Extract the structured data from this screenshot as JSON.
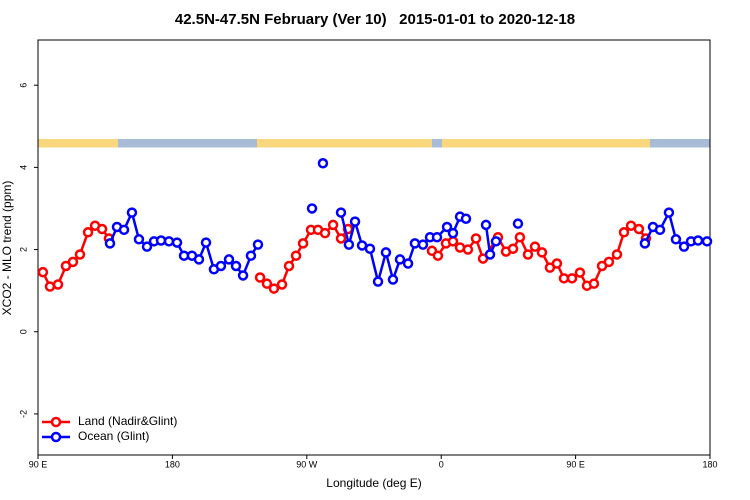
{
  "chart_data": {
    "type": "line",
    "title": "42.5N-47.5N February (Ver 10)   2015-01-01 to 2020-12-18",
    "xlabel": "Longitude (deg E)",
    "ylabel": "XCO2 - MLO trend (ppm)",
    "xlim": [
      90,
      540
    ],
    "ylim": [
      -3,
      7.1
    ],
    "xticks": [
      {
        "value": 90,
        "label": "90 E"
      },
      180,
      {
        "value": 270,
        "label": "90 W"
      },
      {
        "value": 360,
        "label": "0"
      },
      {
        "value": 450,
        "label": "90 E"
      },
      {
        "value": 540,
        "label": "180"
      }
    ],
    "yticks": [
      -2,
      0,
      2,
      4,
      6
    ],
    "grid": false,
    "legend": "bottom-left",
    "series": [
      {
        "name": "Land (Nadir&Glint)",
        "color": "#ff0000",
        "x": [
          93.3,
          98.0,
          103.4,
          108.7,
          113.4,
          118.1,
          123.5,
          128.2,
          132.9,
          137.5,
          null,
          238.7,
          243.3,
          248.0,
          253.4,
          258.1,
          262.8,
          267.5,
          272.8,
          277.5,
          282.2,
          287.6,
          292.9,
          297.6,
          null,
          353.8,
          357.8,
          363.2,
          367.9,
          372.6,
          377.9,
          383.3,
          388.0,
          398.0,
          403.4,
          408.1,
          412.7,
          418.1,
          422.8,
          427.5,
          432.8,
          437.5,
          442.2,
          447.6,
          452.9,
          457.6,
          462.3,
          467.7,
          472.3,
          477.7,
          482.4,
          487.1,
          492.4,
          497.1
        ],
        "values": [
          1.45,
          1.1,
          1.15,
          1.6,
          1.7,
          1.88,
          2.42,
          2.58,
          2.5,
          2.27,
          null,
          1.32,
          1.17,
          1.05,
          1.15,
          1.6,
          1.85,
          2.15,
          2.48,
          2.48,
          2.4,
          2.6,
          2.27,
          2.5,
          null,
          1.97,
          1.85,
          2.15,
          2.2,
          2.05,
          2.0,
          2.27,
          1.78,
          2.3,
          1.95,
          2.02,
          2.3,
          1.88,
          2.07,
          1.93,
          1.56,
          1.66,
          1.3,
          1.3,
          1.44,
          1.12,
          1.17,
          1.6,
          1.7,
          1.88,
          2.42,
          2.58,
          2.5,
          2.27
        ]
      },
      {
        "name": "Ocean (Glint)",
        "color": "#0000ff",
        "x": [
          138.2,
          142.9,
          147.6,
          152.9,
          157.6,
          163.0,
          167.7,
          172.4,
          177.7,
          183.1,
          187.8,
          193.1,
          197.8,
          202.5,
          207.8,
          212.5,
          217.9,
          222.6,
          227.3,
          232.6,
          237.3,
          null,
          273.5,
          null,
          280.8,
          null,
          292.9,
          298.2,
          302.3,
          307.0,
          312.3,
          317.7,
          323.0,
          327.7,
          332.4,
          337.8,
          342.4,
          347.8,
          352.5,
          357.2,
          363.9,
          367.9,
          372.6,
          376.6,
          null,
          390.0,
          392.7,
          396.7,
          null,
          411.4,
          null,
          496.4,
          501.8,
          506.5,
          512.5,
          517.2,
          522.6,
          527.3,
          532.0,
          538.0
        ],
        "values": [
          2.15,
          2.55,
          2.48,
          2.9,
          2.25,
          2.07,
          2.2,
          2.22,
          2.2,
          2.17,
          1.85,
          1.85,
          1.76,
          2.17,
          1.52,
          1.6,
          1.76,
          1.6,
          1.37,
          1.85,
          2.12,
          null,
          3.0,
          null,
          4.1,
          null,
          2.9,
          2.12,
          2.68,
          2.1,
          2.02,
          1.22,
          1.93,
          1.27,
          1.76,
          1.66,
          2.15,
          2.12,
          2.3,
          2.3,
          2.55,
          2.4,
          2.8,
          2.75,
          null,
          2.6,
          1.88,
          2.2,
          null,
          2.63,
          null,
          2.15,
          2.55,
          2.48,
          2.9,
          2.25,
          2.07,
          2.2,
          2.22,
          2.2
        ]
      }
    ]
  }
}
